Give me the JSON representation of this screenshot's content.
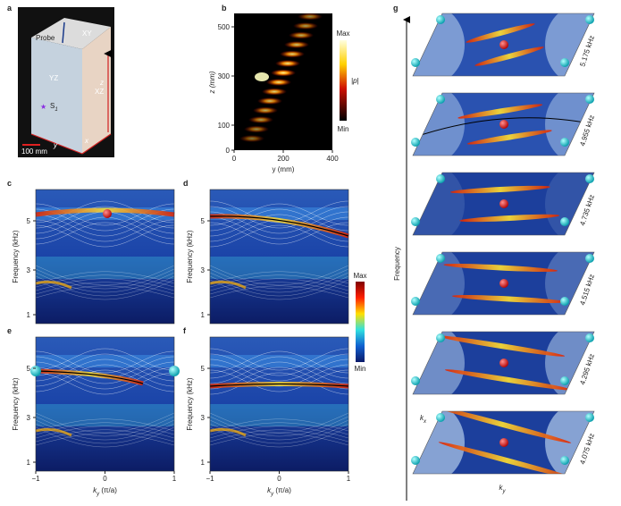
{
  "panel_labels": [
    "a",
    "b",
    "c",
    "d",
    "e",
    "f",
    "g"
  ],
  "panel_a": {
    "probe": "Probe",
    "faces": [
      "XY",
      "YZ",
      "XZ"
    ],
    "source": "S",
    "source_index": "1",
    "scale_bar": "100 mm",
    "axes": [
      "y",
      "x",
      "z"
    ]
  },
  "panel_b": {
    "y_axis_label": "z (mm)",
    "x_axis_label": "y (mm)",
    "yticks": [
      500,
      300,
      100,
      0
    ],
    "xticks": [
      0,
      200,
      400
    ],
    "colorbar": {
      "max": "Max",
      "label": "|p|",
      "min": "Min"
    }
  },
  "dispersion": {
    "y_axis_label": "Frequency (kHz)",
    "x_axis_symbol": "k",
    "x_axis_subscript": "y",
    "x_axis_unit": " (π/a)",
    "yticks": [
      5,
      3,
      1
    ],
    "xtick_labels": [
      "−1",
      "0",
      "1"
    ],
    "colorbar": {
      "max": "Max",
      "min": "Min"
    }
  },
  "panel_g": {
    "axis_label": "Frequency",
    "slices": [
      "5.175 kHz",
      "4.955 kHz",
      "4.735 kHz",
      "4.515 kHz",
      "4.295 kHz",
      "4.075 kHz"
    ],
    "kx_symbol": "k",
    "kx_subscript": "x",
    "ky_symbol": "k",
    "ky_subscript": "y"
  }
}
